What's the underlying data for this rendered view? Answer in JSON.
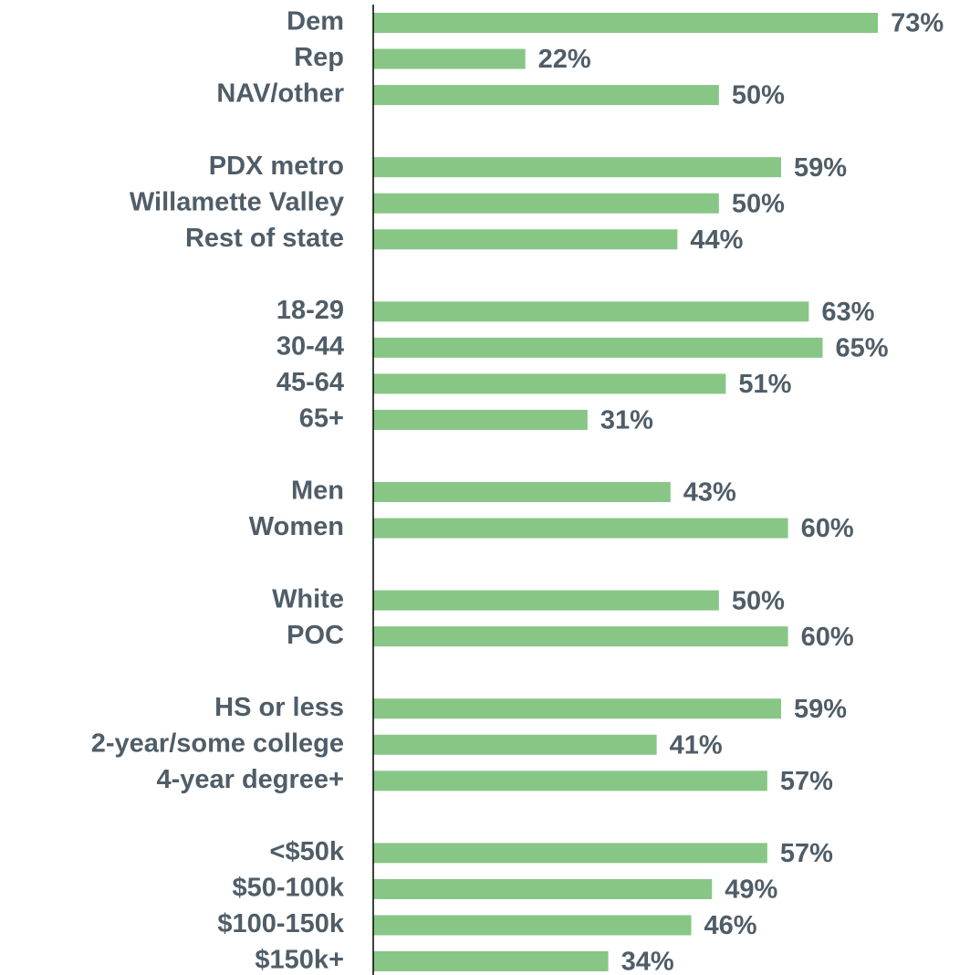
{
  "chart_data": {
    "type": "bar",
    "orientation": "horizontal",
    "color": "#88c686",
    "categories": [
      "Dem",
      "Rep",
      "NAV/other",
      null,
      "PDX metro",
      "Willamette Valley",
      "Rest of state",
      null,
      "18-29",
      "30-44",
      "45-64",
      "65+",
      null,
      "Men",
      "Women",
      null,
      "White",
      "POC",
      null,
      "HS or less",
      "2-year/some college",
      "4-year degree+",
      null,
      "<$50k",
      "$50-100k",
      "$100-150k",
      "$150k+"
    ],
    "values": [
      73,
      22,
      50,
      null,
      59,
      50,
      44,
      null,
      63,
      65,
      51,
      31,
      null,
      43,
      60,
      null,
      50,
      60,
      null,
      59,
      41,
      57,
      null,
      57,
      49,
      46,
      34
    ],
    "value_labels": [
      "73%",
      "22%",
      "50%",
      null,
      "59%",
      "50%",
      "44%",
      null,
      "63%",
      "65%",
      "51%",
      "31%",
      null,
      "43%",
      "60%",
      null,
      "50%",
      "60%",
      null,
      "59%",
      "41%",
      "57%",
      null,
      "57%",
      "49%",
      "46%",
      "34%"
    ],
    "xlim": [
      0,
      85
    ]
  }
}
